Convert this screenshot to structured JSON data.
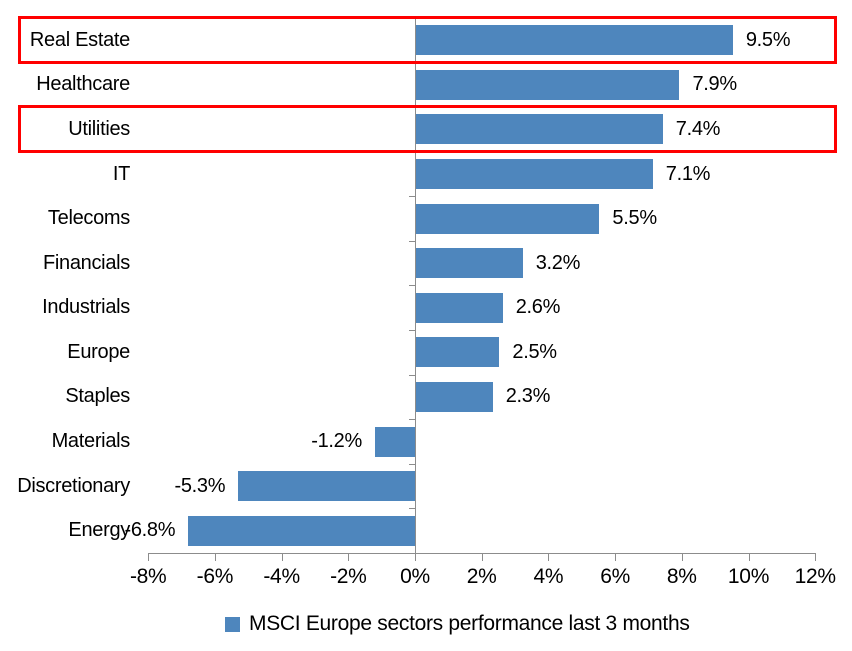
{
  "chart_data": {
    "type": "bar",
    "orientation": "horizontal",
    "title": "",
    "categories": [
      "Real Estate",
      "Healthcare",
      "Utilities",
      "IT",
      "Telecoms",
      "Financials",
      "Industrials",
      "Europe",
      "Staples",
      "Materials",
      "Discretionary",
      "Energy"
    ],
    "values": [
      9.5,
      7.9,
      7.4,
      7.1,
      5.5,
      3.2,
      2.6,
      2.5,
      2.3,
      -1.2,
      -5.3,
      -6.8
    ],
    "value_labels": [
      "9.5%",
      "7.9%",
      "7.4%",
      "7.1%",
      "5.5%",
      "3.2%",
      "2.6%",
      "2.5%",
      "2.3%",
      "-1.2%",
      "-5.3%",
      "-6.8%"
    ],
    "x_tick_labels": [
      "-8%",
      "-6%",
      "-4%",
      "-2%",
      "0%",
      "2%",
      "4%",
      "6%",
      "8%",
      "10%",
      "12%"
    ],
    "x_tick_values": [
      -8,
      -6,
      -4,
      -2,
      0,
      2,
      4,
      6,
      8,
      10,
      12
    ],
    "xlim": [
      -8,
      12
    ],
    "grid": false,
    "legend": "MSCI Europe sectors performance last 3 months",
    "legend_position": "bottom",
    "highlighted_categories": [
      "Real Estate",
      "Utilities"
    ],
    "colors": {
      "bar": "#4E86BD",
      "axis": "#8C8C8C",
      "highlight_box": "#FF0000",
      "text": "#000000",
      "background": "#FFFFFF"
    }
  }
}
